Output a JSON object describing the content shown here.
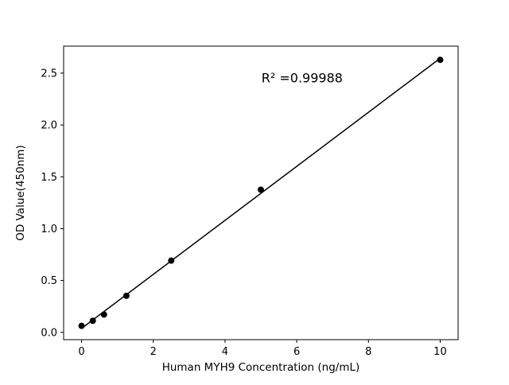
{
  "chart_data": {
    "type": "scatter",
    "title": "",
    "xlabel": "Human MYH9 Concentration (ng/mL)",
    "ylabel": "OD Value(450nm)",
    "annotation": "R² =0.99988",
    "x": [
      0,
      0.313,
      0.625,
      1.25,
      2.5,
      5,
      10
    ],
    "y": [
      0.063,
      0.112,
      0.172,
      0.353,
      0.692,
      1.376,
      2.628
    ],
    "xlim": [
      -0.5,
      10.5
    ],
    "ylim": [
      -0.07,
      2.76
    ],
    "xticks": [
      0,
      2,
      4,
      6,
      8,
      10
    ],
    "xtick_labels": [
      "0",
      "2",
      "4",
      "6",
      "8",
      "10"
    ],
    "yticks": [
      0.0,
      0.5,
      1.0,
      1.5,
      2.0,
      2.5
    ],
    "ytick_labels": [
      "0.0",
      "0.5",
      "1.0",
      "1.5",
      "2.0",
      "2.5"
    ],
    "marker_color": "#000000",
    "line_color": "#000000",
    "background_color": "#ffffff",
    "grid": false,
    "legend": null
  }
}
